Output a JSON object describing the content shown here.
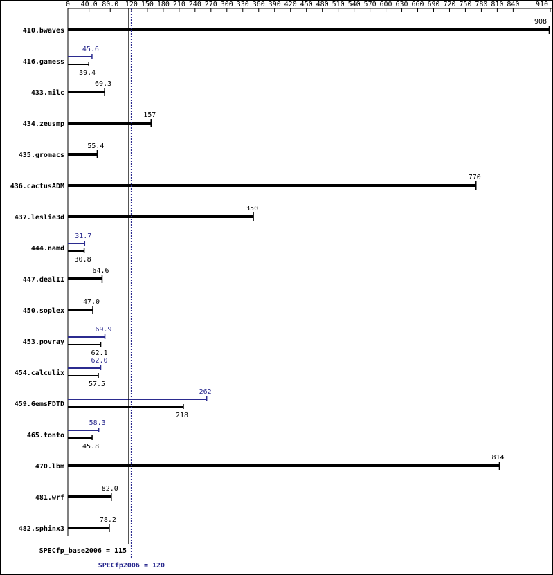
{
  "chart_data": {
    "type": "bar",
    "categories": [
      "410.bwaves",
      "416.gamess",
      "433.milc",
      "434.zeusmp",
      "435.gromacs",
      "436.cactusADM",
      "437.leslie3d",
      "444.namd",
      "447.dealII",
      "450.soplex",
      "453.povray",
      "454.calculix",
      "459.GemsFDTD",
      "465.tonto",
      "470.lbm",
      "481.wrf",
      "482.sphinx3"
    ],
    "series": [
      {
        "color": "#000000",
        "values": [
          908,
          39.4,
          69.3,
          157,
          55.4,
          770,
          350,
          30.8,
          64.6,
          47.0,
          62.1,
          57.5,
          218,
          45.8,
          814,
          82.0,
          78.2
        ],
        "value_labels": [
          "908",
          "39.4",
          "69.3",
          "157",
          "55.4",
          "770",
          "350",
          "30.8",
          "64.6",
          "47.0",
          "62.1",
          "57.5",
          "218",
          "45.8",
          "814",
          "82.0",
          "78.2"
        ]
      },
      {
        "color": "#2b2b8f",
        "values": [
          null,
          45.6,
          null,
          null,
          null,
          null,
          null,
          31.7,
          null,
          null,
          69.9,
          62.0,
          262,
          58.3,
          null,
          null,
          null
        ],
        "value_labels": [
          null,
          "45.6",
          null,
          null,
          null,
          null,
          null,
          "31.7",
          null,
          null,
          "69.9",
          "62.0",
          "262",
          "58.3",
          null,
          null,
          null
        ]
      }
    ],
    "xlim": [
      0,
      910
    ],
    "xticks": [
      0,
      {
        "value": 40,
        "label": "40.0"
      },
      {
        "value": 80,
        "label": "80.0"
      },
      120,
      150,
      180,
      210,
      240,
      270,
      300,
      330,
      360,
      390,
      420,
      450,
      480,
      510,
      540,
      570,
      600,
      630,
      660,
      690,
      720,
      750,
      780,
      810,
      840,
      910
    ],
    "reference_lines": [
      {
        "label": "SPECfp_base2006 = 115",
        "value": 115,
        "color": "#000000",
        "dotted": false
      },
      {
        "label": "SPECfp2006 = 120",
        "value": 120,
        "color": "#2b2b8f",
        "dotted": true
      }
    ]
  }
}
